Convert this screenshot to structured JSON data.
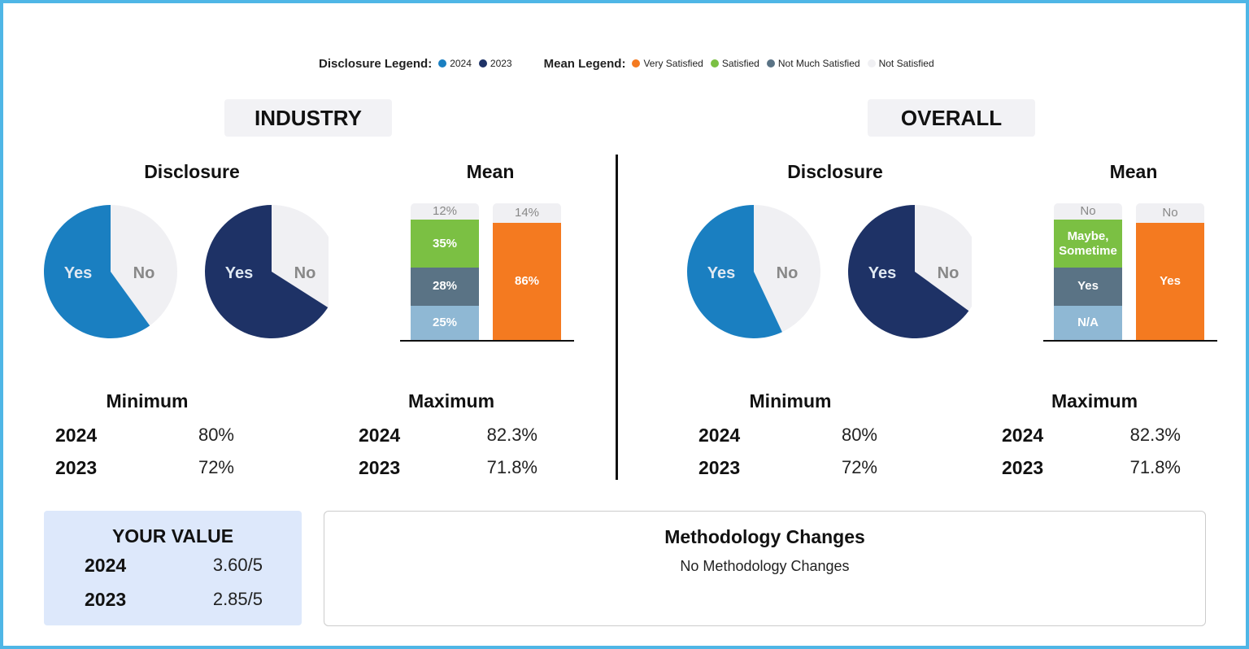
{
  "legends": {
    "disclosure": {
      "title": "Disclosure Legend:",
      "items": [
        {
          "label": "2024",
          "color": "#1a7fc1"
        },
        {
          "label": "2023",
          "color": "#1e3266"
        }
      ]
    },
    "mean": {
      "title": "Mean Legend:",
      "items": [
        {
          "label": "Very Satisfied",
          "color": "#f47a20"
        },
        {
          "label": "Satisfied",
          "color": "#7bc043"
        },
        {
          "label": "Not Much Satisfied",
          "color": "#5a7385"
        },
        {
          "label": "Not Satisfied",
          "color": "#f0f0f3"
        }
      ]
    }
  },
  "panels": [
    {
      "title": "INDUSTRY",
      "disclosure": {
        "title": "Disclosure",
        "pies": [
          {
            "type": "pie",
            "color": "#1a7fc1",
            "other_color": "#f0f0f3",
            "categories": [
              "Yes",
              "No"
            ],
            "values": [
              60,
              40
            ]
          },
          {
            "type": "pie",
            "color": "#1e3266",
            "other_color": "#f0f0f3",
            "categories": [
              "Yes",
              "No"
            ],
            "values": [
              66,
              34
            ]
          }
        ]
      },
      "mean": {
        "title": "Mean",
        "bars": [
          {
            "values": [
              25,
              28,
              35,
              12
            ],
            "value_labels": [
              "25%",
              "28%",
              "35%",
              "12%"
            ],
            "colors": [
              "#8fb8d4",
              "#5a7385",
              "#7bc043",
              "#f0f0f3"
            ]
          },
          {
            "values": [
              86,
              14
            ],
            "value_labels": [
              "86%",
              "14%"
            ],
            "colors": [
              "#f47a20",
              "#f0f0f3"
            ]
          }
        ]
      },
      "minimum": {
        "title": "Minimum",
        "rows": [
          {
            "year": "2024",
            "value": "80%"
          },
          {
            "year": "2023",
            "value": "72%"
          }
        ]
      },
      "maximum": {
        "title": "Maximum",
        "rows": [
          {
            "year": "2024",
            "value": "82.3%"
          },
          {
            "year": "2023",
            "value": "71.8%"
          }
        ]
      }
    },
    {
      "title": "OVERALL",
      "disclosure": {
        "title": "Disclosure",
        "pies": [
          {
            "type": "pie",
            "color": "#1a7fc1",
            "other_color": "#f0f0f3",
            "categories": [
              "Yes",
              "No"
            ],
            "values": [
              57,
              43
            ]
          },
          {
            "type": "pie",
            "color": "#1e3266",
            "other_color": "#f0f0f3",
            "categories": [
              "Yes",
              "No"
            ],
            "values": [
              65,
              35
            ]
          }
        ]
      },
      "mean": {
        "title": "Mean",
        "bars": [
          {
            "values": [
              25,
              28,
              35,
              12
            ],
            "labels": [
              "N/A",
              "Yes",
              "Maybe, Sometime",
              "No"
            ],
            "colors": [
              "#8fb8d4",
              "#5a7385",
              "#7bc043",
              "#f0f0f3"
            ]
          },
          {
            "values": [
              86,
              14
            ],
            "labels": [
              "Yes",
              "No"
            ],
            "colors": [
              "#f47a20",
              "#f0f0f3"
            ]
          }
        ]
      },
      "minimum": {
        "title": "Minimum",
        "rows": [
          {
            "year": "2024",
            "value": "80%"
          },
          {
            "year": "2023",
            "value": "72%"
          }
        ]
      },
      "maximum": {
        "title": "Maximum",
        "rows": [
          {
            "year": "2024",
            "value": "82.3%"
          },
          {
            "year": "2023",
            "value": "71.8%"
          }
        ]
      }
    }
  ],
  "your_value": {
    "title": "YOUR VALUE",
    "rows": [
      {
        "year": "2024",
        "value": "3.60/5"
      },
      {
        "year": "2023",
        "value": "2.85/5"
      }
    ]
  },
  "methodology": {
    "title": "Methodology Changes",
    "text": "No Methodology Changes"
  }
}
